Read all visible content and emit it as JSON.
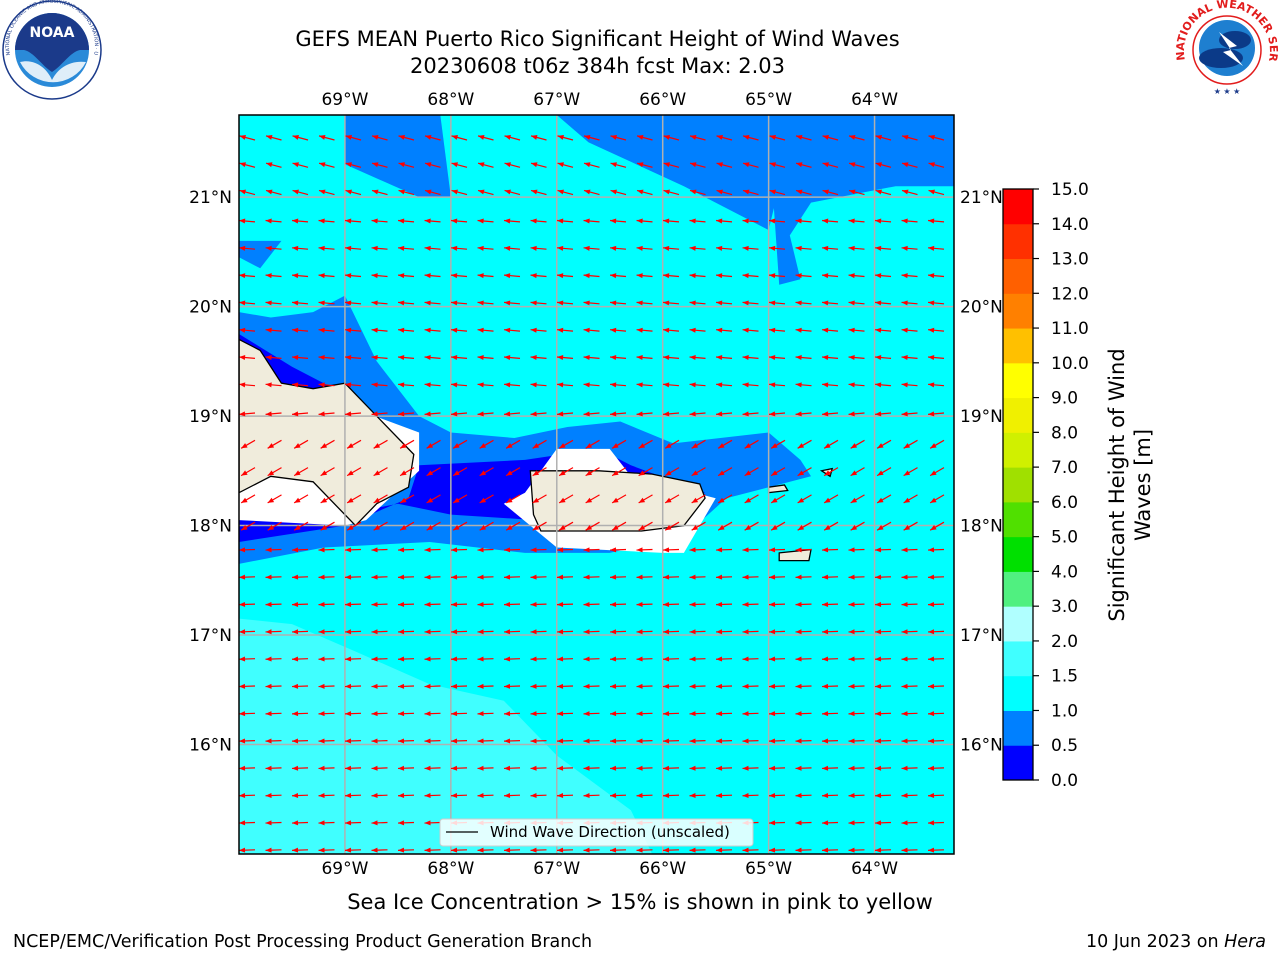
{
  "title_line1": "GEFS MEAN Puerto Rico Significant Height of Wind Waves",
  "title_line2": "20230608 t06z 384h fcst   Max: 2.03",
  "subtitle": "Sea Ice Concentration > 15% is shown in pink to yellow",
  "footer_left": "NCEP/EMC/Verification Post Processing Product Generation Branch",
  "footer_right_date": "10 Jun 2023 on ",
  "footer_right_host": "Hera",
  "logo_left_text": "NOAA",
  "logo_left_ring": "NATIONAL OCEANIC AND ATMOSPHERIC ADMINISTRATION · U.S. DEPARTMENT OF COMMERCE",
  "logo_right_ring": "NATIONAL WEATHER SERVICE",
  "legend_label": "Wind Wave Direction (unscaled)",
  "colorbar_label_line1": "Significant Height of Wind",
  "colorbar_label_line2": "Waves [m]",
  "map": {
    "lon_min": -70.0,
    "lon_max": -63.25,
    "lat_min": 15.0,
    "lat_max": 21.75,
    "lon_ticks": [
      {
        "value": -69,
        "label": "69°W"
      },
      {
        "value": -68,
        "label": "68°W"
      },
      {
        "value": -67,
        "label": "67°W"
      },
      {
        "value": -66,
        "label": "66°W"
      },
      {
        "value": -65,
        "label": "65°W"
      },
      {
        "value": -64,
        "label": "64°W"
      }
    ],
    "lat_ticks": [
      {
        "value": 21,
        "label": "21°N"
      },
      {
        "value": 20,
        "label": "20°N"
      },
      {
        "value": 19,
        "label": "19°N"
      },
      {
        "value": 18,
        "label": "18°N"
      },
      {
        "value": 17,
        "label": "17°N"
      },
      {
        "value": 16,
        "label": "16°N"
      }
    ],
    "background_level_color": "#00ffff",
    "land_color": "#f0ecdc",
    "arrow_color": "#ff0000",
    "grid_color": "#b0b0b0",
    "wave_regions": [
      {
        "name": "0.5-1.0 north",
        "color": "#0080ff",
        "lonlat": [
          [
            -67,
            21.75
          ],
          [
            -63.25,
            21.75
          ],
          [
            -63.25,
            21.1
          ],
          [
            -63.8,
            21.1
          ],
          [
            -64.6,
            20.95
          ],
          [
            -64.8,
            20.65
          ],
          [
            -64.7,
            20.25
          ],
          [
            -64.9,
            20.2
          ],
          [
            -64.95,
            20.9
          ],
          [
            -65,
            20.7
          ],
          [
            -65.8,
            21.1
          ],
          [
            -66.7,
            21.5
          ]
        ]
      },
      {
        "name": "0.5-1.0 northwest",
        "color": "#0080ff",
        "lonlat": [
          [
            -69,
            21.75
          ],
          [
            -68.1,
            21.75
          ],
          [
            -68,
            21.0
          ],
          [
            -68.3,
            21.0
          ],
          [
            -69,
            21.3
          ]
        ]
      },
      {
        "name": "0.5-1.0 west",
        "color": "#0080ff",
        "lonlat": [
          [
            -70,
            20.6
          ],
          [
            -69.6,
            20.6
          ],
          [
            -69.8,
            20.35
          ],
          [
            -70,
            20.45
          ]
        ]
      },
      {
        "name": "0.5-1.0 channel",
        "color": "#0080ff",
        "lonlat": [
          [
            -70,
            19.95
          ],
          [
            -69.7,
            19.9
          ],
          [
            -69.3,
            19.95
          ],
          [
            -69.0,
            20.1
          ],
          [
            -68.7,
            19.5
          ],
          [
            -68.3,
            19.0
          ],
          [
            -68.0,
            18.85
          ],
          [
            -67.4,
            18.8
          ],
          [
            -66.9,
            18.9
          ],
          [
            -66.4,
            18.95
          ],
          [
            -65.9,
            18.75
          ],
          [
            -65.0,
            18.85
          ],
          [
            -64.7,
            18.6
          ],
          [
            -64.6,
            18.45
          ],
          [
            -65.4,
            18.25
          ],
          [
            -65.8,
            17.9
          ],
          [
            -66.5,
            17.75
          ],
          [
            -67.3,
            17.75
          ],
          [
            -68.2,
            17.85
          ],
          [
            -69.2,
            17.8
          ],
          [
            -70,
            17.65
          ]
        ]
      },
      {
        "name": "0.0-0.5 north coast",
        "color": "#0000ff",
        "lonlat": [
          [
            -70,
            19.75
          ],
          [
            -69.5,
            19.45
          ],
          [
            -69.0,
            19.2
          ],
          [
            -70,
            19.1
          ]
        ]
      },
      {
        "name": "0.0-0.5 mona",
        "color": "#0000ff",
        "lonlat": [
          [
            -68.3,
            18.55
          ],
          [
            -67.3,
            18.6
          ],
          [
            -66.6,
            18.7
          ],
          [
            -66.3,
            18.55
          ],
          [
            -65.6,
            18.3
          ],
          [
            -66.2,
            18.1
          ],
          [
            -67.2,
            18.05
          ],
          [
            -68.0,
            18.1
          ],
          [
            -68.5,
            18.2
          ],
          [
            -69.3,
            18.05
          ],
          [
            -70,
            18.1
          ],
          [
            -70,
            17.85
          ],
          [
            -69,
            18.0
          ],
          [
            -68.4,
            18.25
          ]
        ]
      },
      {
        "name": "1.5-2.0 south",
        "color": "#40ffff",
        "lonlat": [
          [
            -70,
            17.15
          ],
          [
            -69.5,
            17.1
          ],
          [
            -68.9,
            16.85
          ],
          [
            -68.2,
            16.55
          ],
          [
            -67.5,
            16.4
          ],
          [
            -67.0,
            15.9
          ],
          [
            -66.3,
            15.4
          ],
          [
            -66.1,
            15.0
          ],
          [
            -70,
            15.0
          ]
        ]
      }
    ],
    "white_regions": [
      {
        "lonlat": [
          [
            -70,
            19.1
          ],
          [
            -69.0,
            19.1
          ],
          [
            -68.3,
            18.85
          ],
          [
            -68.3,
            18.5
          ],
          [
            -68.8,
            18.05
          ],
          [
            -69.0,
            18.0
          ],
          [
            -70,
            18.05
          ]
        ]
      },
      {
        "lonlat": [
          [
            -67.3,
            18.3
          ],
          [
            -67.0,
            18.7
          ],
          [
            -66.5,
            18.7
          ],
          [
            -66.3,
            18.45
          ],
          [
            -65.5,
            18.25
          ],
          [
            -65.8,
            17.75
          ],
          [
            -66.0,
            17.75
          ],
          [
            -67.0,
            17.8
          ],
          [
            -67.5,
            18.2
          ]
        ]
      }
    ],
    "land": [
      {
        "name": "Hispaniola",
        "lonlat": [
          [
            -70,
            19.7
          ],
          [
            -69.8,
            19.6
          ],
          [
            -69.6,
            19.3
          ],
          [
            -69.3,
            19.25
          ],
          [
            -69.0,
            19.3
          ],
          [
            -68.7,
            19.0
          ],
          [
            -68.35,
            18.65
          ],
          [
            -68.4,
            18.35
          ],
          [
            -68.7,
            18.2
          ],
          [
            -68.9,
            18.0
          ],
          [
            -69.3,
            18.4
          ],
          [
            -69.7,
            18.45
          ],
          [
            -70,
            18.3
          ]
        ]
      },
      {
        "name": "Puerto Rico",
        "lonlat": [
          [
            -67.25,
            18.5
          ],
          [
            -66.6,
            18.5
          ],
          [
            -66.1,
            18.47
          ],
          [
            -65.65,
            18.38
          ],
          [
            -65.6,
            18.25
          ],
          [
            -65.8,
            18.0
          ],
          [
            -66.2,
            17.95
          ],
          [
            -66.8,
            17.95
          ],
          [
            -67.15,
            17.95
          ],
          [
            -67.22,
            18.1
          ]
        ]
      },
      {
        "name": "St Croix",
        "lonlat": [
          [
            -64.9,
            17.75
          ],
          [
            -64.6,
            17.78
          ],
          [
            -64.62,
            17.68
          ],
          [
            -64.9,
            17.68
          ]
        ]
      },
      {
        "name": "St Thomas",
        "lonlat": [
          [
            -65.0,
            18.35
          ],
          [
            -64.85,
            18.37
          ],
          [
            -64.82,
            18.32
          ],
          [
            -65.0,
            18.3
          ]
        ]
      },
      {
        "name": "Virgin Gorda",
        "lonlat": [
          [
            -64.5,
            18.5
          ],
          [
            -64.4,
            18.52
          ],
          [
            -64.42,
            18.45
          ]
        ]
      }
    ]
  },
  "colorbar": {
    "levels": [
      "0.0",
      "0.5",
      "1.0",
      "1.5",
      "2.0",
      "3.0",
      "4.0",
      "5.0",
      "6.0",
      "7.0",
      "8.0",
      "9.0",
      "10.0",
      "11.0",
      "12.0",
      "13.0",
      "14.0",
      "15.0"
    ],
    "colors": [
      "#0000ff",
      "#0080ff",
      "#00ffff",
      "#40ffff",
      "#b0ffff",
      "#50f080",
      "#00e000",
      "#50e000",
      "#a0e000",
      "#d0f000",
      "#f0f000",
      "#ffff00",
      "#ffc000",
      "#ff8000",
      "#ff6000",
      "#ff3000",
      "#ff0000"
    ]
  }
}
